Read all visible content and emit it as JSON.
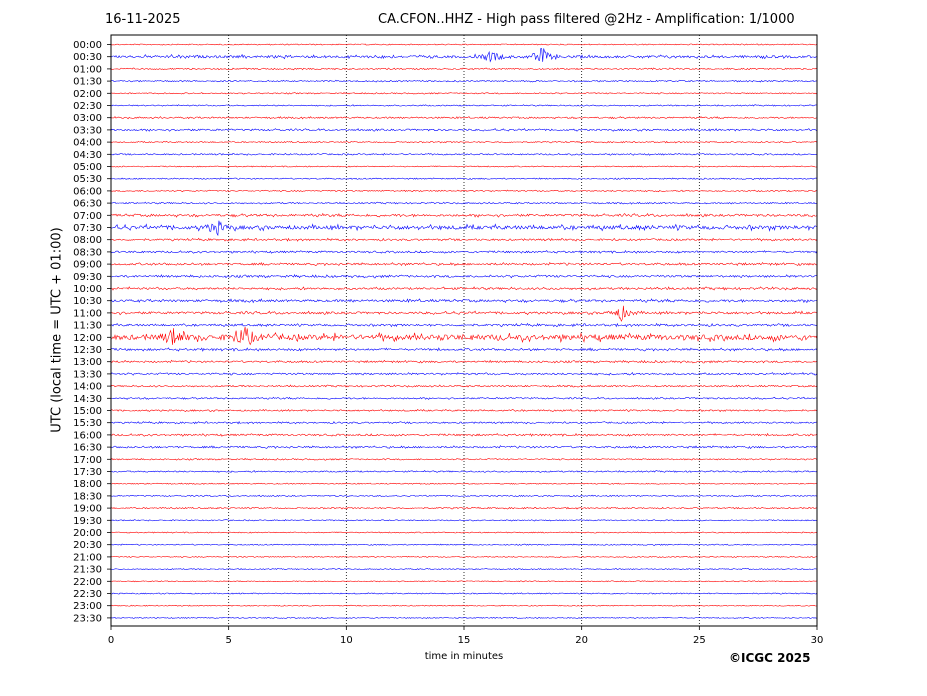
{
  "header": {
    "date": "16-11-2025",
    "title": "CA.CFON..HHZ - High pass filtered @2Hz - Amplification: 1/1000"
  },
  "footer": {
    "copyright": "©ICGC 2025"
  },
  "chart_data": {
    "type": "line",
    "title": "CA.CFON..HHZ - High pass filtered @2Hz - Amplification: 1/1000",
    "xlabel": "time in minutes",
    "ylabel": "UTC (local time = UTC + 01:00)",
    "xlim": [
      0,
      30
    ],
    "xticks": [
      0,
      5,
      10,
      15,
      20,
      25,
      30
    ],
    "grid": "vertical dotted at x ticks",
    "row_colors": {
      "even": "#ff0000",
      "odd": "#0000ff"
    },
    "categories": [
      "00:00",
      "00:30",
      "01:00",
      "01:30",
      "02:00",
      "02:30",
      "03:00",
      "03:30",
      "04:00",
      "04:30",
      "05:00",
      "05:30",
      "06:00",
      "06:30",
      "07:00",
      "07:30",
      "08:00",
      "08:30",
      "09:00",
      "09:30",
      "10:00",
      "10:30",
      "11:00",
      "11:30",
      "12:00",
      "12:30",
      "13:00",
      "13:30",
      "14:00",
      "14:30",
      "15:00",
      "15:30",
      "16:00",
      "16:30",
      "17:00",
      "17:30",
      "18:00",
      "18:30",
      "19:00",
      "19:30",
      "20:00",
      "20:30",
      "21:00",
      "21:30",
      "22:00",
      "22:30",
      "23:00",
      "23:30"
    ],
    "activity": [
      0.05,
      0.35,
      0.12,
      0.1,
      0.08,
      0.08,
      0.15,
      0.2,
      0.08,
      0.12,
      0.05,
      0.08,
      0.1,
      0.12,
      0.3,
      0.6,
      0.2,
      0.2,
      0.25,
      0.25,
      0.25,
      0.3,
      0.3,
      0.25,
      0.9,
      0.25,
      0.2,
      0.2,
      0.15,
      0.15,
      0.15,
      0.15,
      0.2,
      0.2,
      0.1,
      0.12,
      0.05,
      0.08,
      0.1,
      0.06,
      0.05,
      0.06,
      0.04,
      0.04,
      0.04,
      0.06,
      0.03,
      0.03
    ],
    "events": [
      {
        "row": "00:30",
        "minute": 16.2,
        "amplitude": 0.6
      },
      {
        "row": "00:30",
        "minute": 18.3,
        "amplitude": 1.0
      },
      {
        "row": "07:30",
        "minute": 4.5,
        "amplitude": 0.8
      },
      {
        "row": "11:00",
        "minute": 21.7,
        "amplitude": 0.9
      },
      {
        "row": "12:00",
        "minute": 2.7,
        "amplitude": 1.0
      },
      {
        "row": "12:00",
        "minute": 5.7,
        "amplitude": 1.3
      }
    ]
  }
}
